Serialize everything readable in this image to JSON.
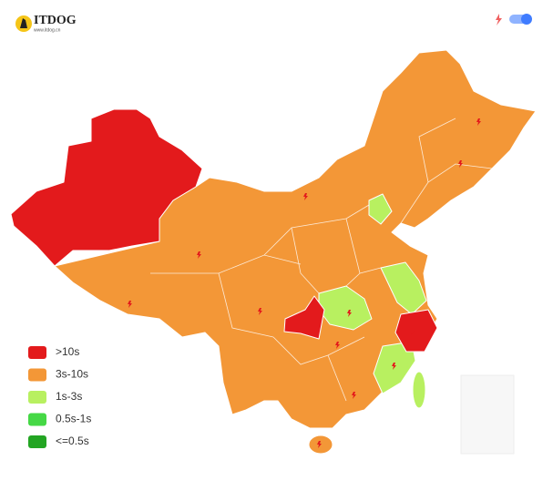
{
  "logo": {
    "title": "ITDOG",
    "subtitle": "www.itdog.cn"
  },
  "legend": [
    {
      "label": ">10s",
      "color": "#e31a1c"
    },
    {
      "label": "3s-10s",
      "color": "#f39737"
    },
    {
      "label": "1s-3s",
      "color": "#b8f060"
    },
    {
      "label": "0.5s-1s",
      "color": "#45d845"
    },
    {
      "label": "<=0.5s",
      "color": "#23a523"
    }
  ]
}
